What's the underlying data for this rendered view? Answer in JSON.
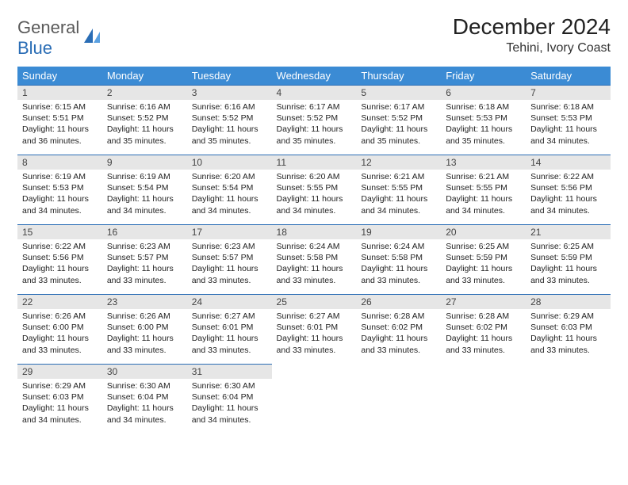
{
  "logo": {
    "text1": "General",
    "text2": "Blue"
  },
  "title": "December 2024",
  "location": "Tehini, Ivory Coast",
  "colors": {
    "header_bg": "#3b8bd4",
    "header_border": "#2a6db5",
    "daynum_bg": "#e6e6e6",
    "logo_gray": "#5a5a5a",
    "logo_blue": "#2a6db5"
  },
  "weekdays": [
    "Sunday",
    "Monday",
    "Tuesday",
    "Wednesday",
    "Thursday",
    "Friday",
    "Saturday"
  ],
  "days": [
    {
      "n": 1,
      "sr": "6:15 AM",
      "ss": "5:51 PM",
      "dl": "11 hours and 36 minutes."
    },
    {
      "n": 2,
      "sr": "6:16 AM",
      "ss": "5:52 PM",
      "dl": "11 hours and 35 minutes."
    },
    {
      "n": 3,
      "sr": "6:16 AM",
      "ss": "5:52 PM",
      "dl": "11 hours and 35 minutes."
    },
    {
      "n": 4,
      "sr": "6:17 AM",
      "ss": "5:52 PM",
      "dl": "11 hours and 35 minutes."
    },
    {
      "n": 5,
      "sr": "6:17 AM",
      "ss": "5:52 PM",
      "dl": "11 hours and 35 minutes."
    },
    {
      "n": 6,
      "sr": "6:18 AM",
      "ss": "5:53 PM",
      "dl": "11 hours and 35 minutes."
    },
    {
      "n": 7,
      "sr": "6:18 AM",
      "ss": "5:53 PM",
      "dl": "11 hours and 34 minutes."
    },
    {
      "n": 8,
      "sr": "6:19 AM",
      "ss": "5:53 PM",
      "dl": "11 hours and 34 minutes."
    },
    {
      "n": 9,
      "sr": "6:19 AM",
      "ss": "5:54 PM",
      "dl": "11 hours and 34 minutes."
    },
    {
      "n": 10,
      "sr": "6:20 AM",
      "ss": "5:54 PM",
      "dl": "11 hours and 34 minutes."
    },
    {
      "n": 11,
      "sr": "6:20 AM",
      "ss": "5:55 PM",
      "dl": "11 hours and 34 minutes."
    },
    {
      "n": 12,
      "sr": "6:21 AM",
      "ss": "5:55 PM",
      "dl": "11 hours and 34 minutes."
    },
    {
      "n": 13,
      "sr": "6:21 AM",
      "ss": "5:55 PM",
      "dl": "11 hours and 34 minutes."
    },
    {
      "n": 14,
      "sr": "6:22 AM",
      "ss": "5:56 PM",
      "dl": "11 hours and 34 minutes."
    },
    {
      "n": 15,
      "sr": "6:22 AM",
      "ss": "5:56 PM",
      "dl": "11 hours and 33 minutes."
    },
    {
      "n": 16,
      "sr": "6:23 AM",
      "ss": "5:57 PM",
      "dl": "11 hours and 33 minutes."
    },
    {
      "n": 17,
      "sr": "6:23 AM",
      "ss": "5:57 PM",
      "dl": "11 hours and 33 minutes."
    },
    {
      "n": 18,
      "sr": "6:24 AM",
      "ss": "5:58 PM",
      "dl": "11 hours and 33 minutes."
    },
    {
      "n": 19,
      "sr": "6:24 AM",
      "ss": "5:58 PM",
      "dl": "11 hours and 33 minutes."
    },
    {
      "n": 20,
      "sr": "6:25 AM",
      "ss": "5:59 PM",
      "dl": "11 hours and 33 minutes."
    },
    {
      "n": 21,
      "sr": "6:25 AM",
      "ss": "5:59 PM",
      "dl": "11 hours and 33 minutes."
    },
    {
      "n": 22,
      "sr": "6:26 AM",
      "ss": "6:00 PM",
      "dl": "11 hours and 33 minutes."
    },
    {
      "n": 23,
      "sr": "6:26 AM",
      "ss": "6:00 PM",
      "dl": "11 hours and 33 minutes."
    },
    {
      "n": 24,
      "sr": "6:27 AM",
      "ss": "6:01 PM",
      "dl": "11 hours and 33 minutes."
    },
    {
      "n": 25,
      "sr": "6:27 AM",
      "ss": "6:01 PM",
      "dl": "11 hours and 33 minutes."
    },
    {
      "n": 26,
      "sr": "6:28 AM",
      "ss": "6:02 PM",
      "dl": "11 hours and 33 minutes."
    },
    {
      "n": 27,
      "sr": "6:28 AM",
      "ss": "6:02 PM",
      "dl": "11 hours and 33 minutes."
    },
    {
      "n": 28,
      "sr": "6:29 AM",
      "ss": "6:03 PM",
      "dl": "11 hours and 33 minutes."
    },
    {
      "n": 29,
      "sr": "6:29 AM",
      "ss": "6:03 PM",
      "dl": "11 hours and 34 minutes."
    },
    {
      "n": 30,
      "sr": "6:30 AM",
      "ss": "6:04 PM",
      "dl": "11 hours and 34 minutes."
    },
    {
      "n": 31,
      "sr": "6:30 AM",
      "ss": "6:04 PM",
      "dl": "11 hours and 34 minutes."
    }
  ],
  "labels": {
    "sunrise": "Sunrise: ",
    "sunset": "Sunset: ",
    "daylight": "Daylight: "
  },
  "start_weekday": 0
}
